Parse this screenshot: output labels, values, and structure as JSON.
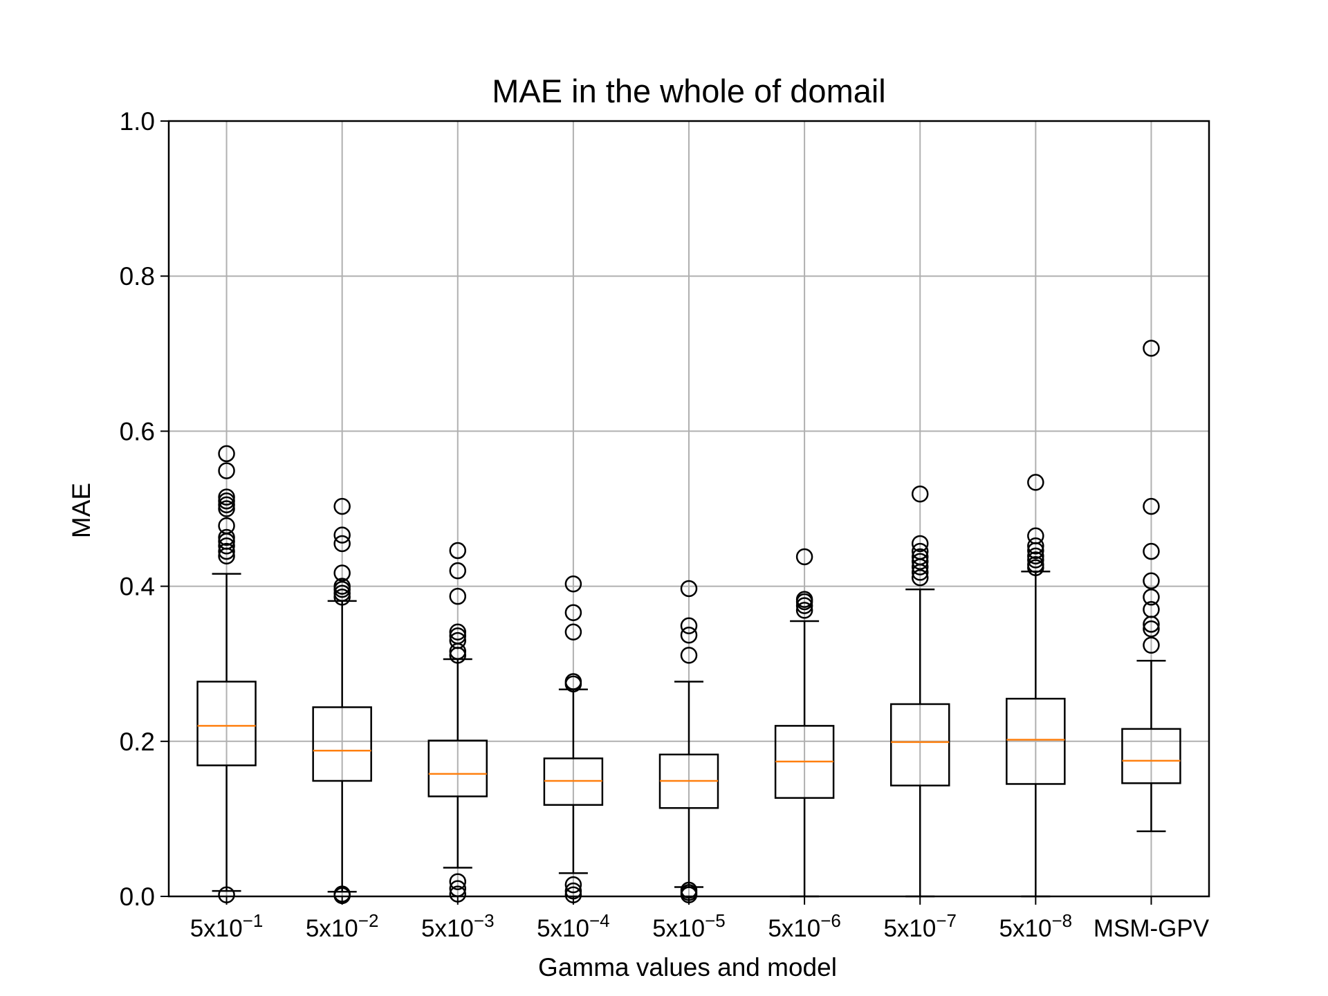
{
  "chart_data": {
    "type": "box",
    "title": "MAE in the whole of domail",
    "xlabel": "Gamma values and model",
    "ylabel": "MAE",
    "ylim": [
      0,
      1.0
    ],
    "yticks": [
      "0.0",
      "0.2",
      "0.4",
      "0.6",
      "0.8",
      "1.0"
    ],
    "grid": true,
    "colors": {
      "box": "#000000",
      "median": "#ff7f0e",
      "grid": "#b0b0b0"
    },
    "categories": [
      {
        "base": "5x10",
        "exp": "−1"
      },
      {
        "base": "5x10",
        "exp": "−2"
      },
      {
        "base": "5x10",
        "exp": "−3"
      },
      {
        "base": "5x10",
        "exp": "−4"
      },
      {
        "base": "5x10",
        "exp": "−5"
      },
      {
        "base": "5x10",
        "exp": "−6"
      },
      {
        "base": "5x10",
        "exp": "−7"
      },
      {
        "base": "5x10",
        "exp": "−8"
      },
      {
        "base": "MSM-GPV",
        "exp": ""
      }
    ],
    "boxes": [
      {
        "whislo": 0.007,
        "q1": 0.169,
        "median": 0.22,
        "q3": 0.277,
        "whishi": 0.416,
        "fliers": [
          0.002,
          0.439,
          0.445,
          0.452,
          0.458,
          0.463,
          0.478,
          0.5,
          0.505,
          0.51,
          0.515,
          0.549,
          0.571
        ]
      },
      {
        "whislo": 0.006,
        "q1": 0.149,
        "median": 0.188,
        "q3": 0.244,
        "whishi": 0.381,
        "fliers": [
          0.001,
          0.003,
          0.386,
          0.391,
          0.396,
          0.4,
          0.417,
          0.455,
          0.466,
          0.503
        ]
      },
      {
        "whislo": 0.037,
        "q1": 0.129,
        "median": 0.158,
        "q3": 0.201,
        "whishi": 0.306,
        "fliers": [
          0.003,
          0.01,
          0.019,
          0.311,
          0.316,
          0.33,
          0.336,
          0.341,
          0.387,
          0.42,
          0.446
        ]
      },
      {
        "whislo": 0.03,
        "q1": 0.118,
        "median": 0.149,
        "q3": 0.178,
        "whishi": 0.267,
        "fliers": [
          0.002,
          0.007,
          0.015,
          0.274,
          0.277,
          0.341,
          0.366,
          0.403
        ]
      },
      {
        "whislo": 0.012,
        "q1": 0.114,
        "median": 0.149,
        "q3": 0.183,
        "whishi": 0.277,
        "fliers": [
          0.002,
          0.005,
          0.008,
          0.311,
          0.337,
          0.349,
          0.397
        ]
      },
      {
        "whislo": 0.0,
        "q1": 0.127,
        "median": 0.174,
        "q3": 0.22,
        "whishi": 0.355,
        "fliers": [
          0.369,
          0.375,
          0.38,
          0.383,
          0.438
        ]
      },
      {
        "whislo": 0.0,
        "q1": 0.143,
        "median": 0.199,
        "q3": 0.248,
        "whishi": 0.396,
        "fliers": [
          0.411,
          0.418,
          0.425,
          0.432,
          0.438,
          0.445,
          0.455,
          0.519
        ]
      },
      {
        "whislo": 0.0,
        "q1": 0.145,
        "median": 0.202,
        "q3": 0.255,
        "whishi": 0.419,
        "fliers": [
          0.424,
          0.428,
          0.434,
          0.439,
          0.446,
          0.452,
          0.465,
          0.534
        ]
      },
      {
        "whislo": 0.084,
        "q1": 0.146,
        "median": 0.175,
        "q3": 0.216,
        "whishi": 0.304,
        "fliers": [
          0.324,
          0.345,
          0.351,
          0.37,
          0.386,
          0.407,
          0.445,
          0.503,
          0.707
        ]
      }
    ]
  }
}
